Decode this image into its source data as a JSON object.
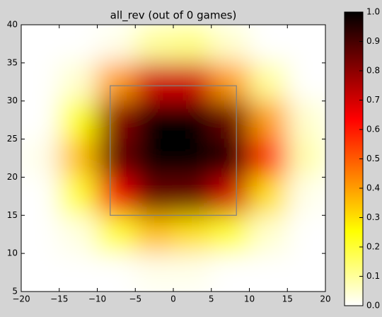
{
  "chart_data": {
    "type": "heatmap",
    "title": "all_rev (out of 0 games)",
    "x": [
      -17.5,
      -12.5,
      -7.5,
      -2.5,
      2.5,
      7.5,
      12.5,
      17.5
    ],
    "y": [
      37.5,
      32.5,
      27.5,
      22.5,
      17.5,
      12.5,
      7.5
    ],
    "z": [
      [
        0,
        0,
        0.02,
        0.1,
        0.12,
        0.05,
        0,
        0
      ],
      [
        0,
        0.05,
        0.4,
        0.7,
        0.7,
        0.4,
        0.1,
        0
      ],
      [
        0,
        0.25,
        0.8,
        1,
        1,
        0.85,
        0.4,
        0.05
      ],
      [
        0.02,
        0.35,
        0.85,
        1,
        1,
        0.95,
        0.55,
        0.08
      ],
      [
        0,
        0.2,
        0.65,
        0.85,
        0.85,
        0.7,
        0.3,
        0.02
      ],
      [
        0,
        0.03,
        0.2,
        0.35,
        0.3,
        0.2,
        0.05,
        0
      ],
      [
        0,
        0,
        0,
        0.02,
        0.02,
        0,
        0,
        0
      ]
    ],
    "xlim": [
      -20,
      20
    ],
    "ylim": [
      5,
      40
    ],
    "xticks": [
      {
        "value": -20,
        "label": "−20"
      },
      {
        "value": -15,
        "label": "−15"
      },
      {
        "value": -10,
        "label": "−10"
      },
      {
        "value": -5,
        "label": "−5"
      },
      0,
      5,
      10,
      15,
      20
    ],
    "yticks": [
      5,
      10,
      15,
      20,
      25,
      30,
      35,
      40
    ],
    "zone": {
      "x": [
        -8.3,
        8.3
      ],
      "y": [
        15,
        32
      ],
      "color": "#808080"
    },
    "colormap": [
      {
        "at": 0,
        "color": "#ffffff"
      },
      {
        "at": 0.254,
        "color": "#ffff00"
      },
      {
        "at": 0.635,
        "color": "#ff0000"
      },
      {
        "at": 1,
        "color": "#000000"
      }
    ],
    "clim": [
      0,
      1
    ],
    "cticks": [
      {
        "value": 0,
        "label": "0.0"
      },
      0.1,
      0.2,
      0.3,
      0.4,
      0.5,
      0.6,
      0.7,
      0.8,
      0.9,
      {
        "value": 1,
        "label": "1.0"
      }
    ]
  }
}
